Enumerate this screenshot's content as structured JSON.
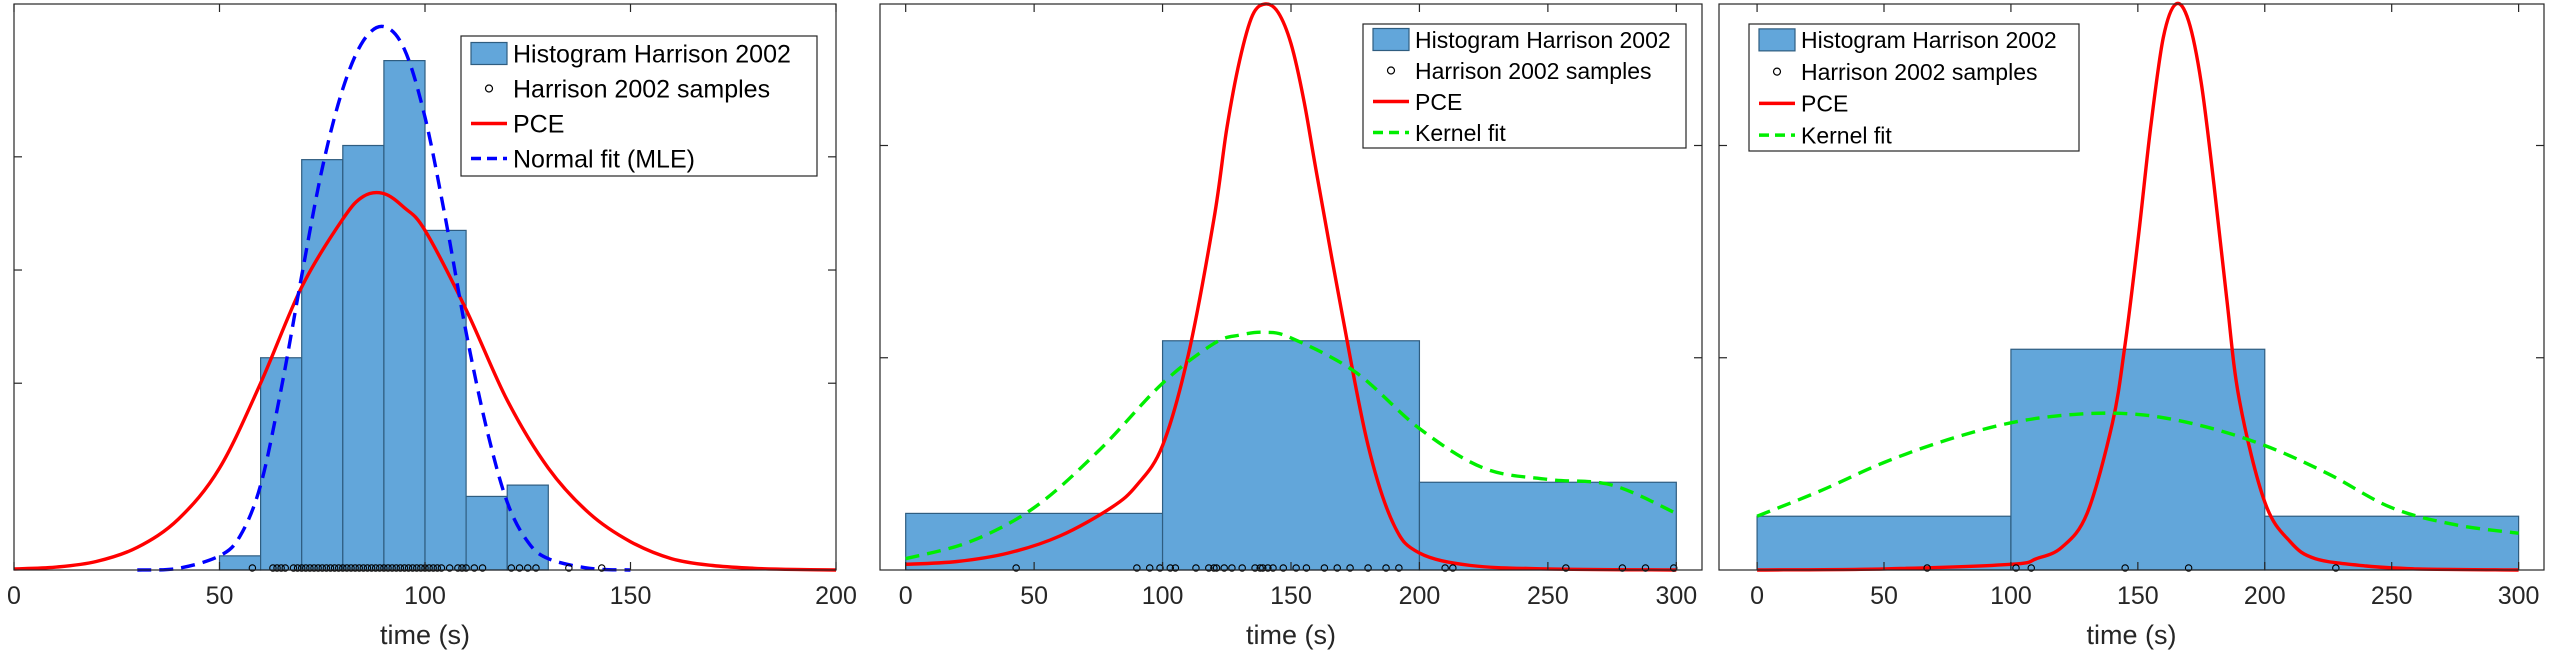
{
  "colors": {
    "histogram_fill": "#62a6da",
    "histogram_edge": "#2f5d80",
    "pce": "#ff0000",
    "normal_fit": "#0000ff",
    "kernel_fit": "#00ee00",
    "axes": "#262626"
  },
  "chart_data": [
    {
      "type": "histogram",
      "xlabel": "time (s)",
      "xlim": [
        0,
        200
      ],
      "ylim": [
        0,
        1
      ],
      "xticks": [
        0,
        50,
        100,
        150,
        200
      ],
      "legend_position": "top-right",
      "legend": [
        "Histogram Harrison 2002",
        "Harrison 2002 samples",
        "PCE",
        "Normal fit (MLE)"
      ],
      "histogram": {
        "edges": [
          50,
          60,
          70,
          80,
          90,
          100,
          110,
          120,
          130
        ],
        "heights": [
          0.025,
          0.375,
          0.725,
          0.75,
          0.9,
          0.6,
          0.13,
          0.15
        ]
      },
      "samples": [
        58,
        63,
        64,
        65,
        66,
        68,
        69,
        70,
        71,
        72,
        73,
        74,
        75,
        76,
        77,
        78,
        79,
        80,
        81,
        82,
        83,
        84,
        85,
        86,
        87,
        88,
        89,
        90,
        91,
        92,
        93,
        94,
        95,
        96,
        97,
        98,
        99,
        100,
        101,
        102,
        103,
        104,
        106,
        108,
        109,
        110,
        112,
        114,
        121,
        123,
        125,
        127,
        135,
        143
      ],
      "pce": {
        "x": [
          0,
          10,
          20,
          30,
          40,
          50,
          60,
          70,
          80,
          85,
          90,
          95,
          100,
          110,
          120,
          130,
          140,
          150,
          160,
          170,
          180,
          190,
          200
        ],
        "y": [
          0.002,
          0.005,
          0.015,
          0.04,
          0.09,
          0.18,
          0.33,
          0.5,
          0.62,
          0.66,
          0.665,
          0.64,
          0.6,
          0.46,
          0.3,
          0.18,
          0.1,
          0.05,
          0.02,
          0.008,
          0.003,
          0.001,
          0.0
        ]
      },
      "normal_fit": {
        "x": [
          30,
          40,
          50,
          55,
          60,
          65,
          70,
          75,
          80,
          85,
          90,
          95,
          100,
          105,
          110,
          115,
          120,
          125,
          130,
          140,
          150
        ],
        "y": [
          0.0,
          0.003,
          0.025,
          0.06,
          0.15,
          0.32,
          0.52,
          0.71,
          0.85,
          0.935,
          0.96,
          0.92,
          0.8,
          0.62,
          0.42,
          0.25,
          0.12,
          0.05,
          0.02,
          0.003,
          0.0
        ]
      }
    },
    {
      "type": "histogram",
      "xlabel": "time (s)",
      "xlim": [
        -10,
        310
      ],
      "ylim": [
        0,
        1
      ],
      "xticks": [
        0,
        50,
        100,
        150,
        200,
        250,
        300
      ],
      "legend_position": "top-right",
      "legend": [
        "Histogram Harrison 2002",
        "Harrison 2002 samples",
        "PCE",
        "Kernel fit"
      ],
      "histogram": {
        "edges": [
          0,
          100,
          200,
          300
        ],
        "heights": [
          0.1,
          0.405,
          0.155
        ]
      },
      "samples": [
        43,
        90,
        95,
        99,
        103,
        105,
        113,
        118,
        120,
        121,
        124,
        127,
        131,
        136,
        138,
        139,
        141,
        143,
        147,
        152,
        156,
        163,
        168,
        173,
        180,
        187,
        192,
        210,
        213,
        257,
        279,
        288,
        299
      ],
      "pce": {
        "x": [
          0,
          20,
          40,
          60,
          80,
          90,
          100,
          110,
          120,
          125,
          130,
          135,
          140,
          145,
          150,
          155,
          160,
          170,
          180,
          190,
          200,
          220,
          250,
          300
        ],
        "y": [
          0.01,
          0.015,
          0.03,
          0.06,
          0.11,
          0.15,
          0.22,
          0.38,
          0.62,
          0.78,
          0.9,
          0.98,
          1.0,
          0.985,
          0.93,
          0.83,
          0.7,
          0.45,
          0.22,
          0.08,
          0.03,
          0.008,
          0.002,
          0.0
        ]
      },
      "kernel_fit": {
        "x": [
          0,
          25,
          50,
          75,
          100,
          120,
          130,
          140,
          150,
          175,
          200,
          225,
          250,
          275,
          300
        ],
        "y": [
          0.02,
          0.05,
          0.11,
          0.21,
          0.33,
          0.4,
          0.415,
          0.42,
          0.41,
          0.35,
          0.25,
          0.18,
          0.16,
          0.15,
          0.1
        ]
      }
    },
    {
      "type": "histogram",
      "xlabel": "time (s)",
      "xlim": [
        -15,
        310
      ],
      "ylim": [
        0,
        1
      ],
      "xticks": [
        0,
        50,
        100,
        150,
        200,
        250,
        300
      ],
      "legend_position": "top-left",
      "legend": [
        "Histogram Harrison 2002",
        "Harrison 2002 samples",
        "PCE",
        "Kernel fit"
      ],
      "histogram": {
        "edges": [
          0,
          100,
          200,
          300
        ],
        "heights": [
          0.095,
          0.39,
          0.095
        ]
      },
      "samples": [
        67,
        102,
        108,
        145,
        170,
        228
      ],
      "pce": {
        "x": [
          0,
          50,
          100,
          110,
          120,
          130,
          140,
          145,
          150,
          155,
          160,
          165,
          170,
          175,
          180,
          185,
          190,
          200,
          210,
          220,
          240,
          260,
          300
        ],
        "y": [
          0.0,
          0.002,
          0.01,
          0.02,
          0.04,
          0.1,
          0.26,
          0.4,
          0.58,
          0.78,
          0.94,
          1.0,
          0.97,
          0.86,
          0.68,
          0.48,
          0.3,
          0.12,
          0.05,
          0.02,
          0.007,
          0.002,
          0.0
        ]
      },
      "kernel_fit": {
        "x": [
          0,
          25,
          50,
          75,
          100,
          125,
          150,
          175,
          200,
          225,
          250,
          275,
          300
        ],
        "y": [
          0.095,
          0.14,
          0.19,
          0.23,
          0.26,
          0.275,
          0.275,
          0.255,
          0.22,
          0.17,
          0.11,
          0.08,
          0.065
        ]
      }
    }
  ]
}
